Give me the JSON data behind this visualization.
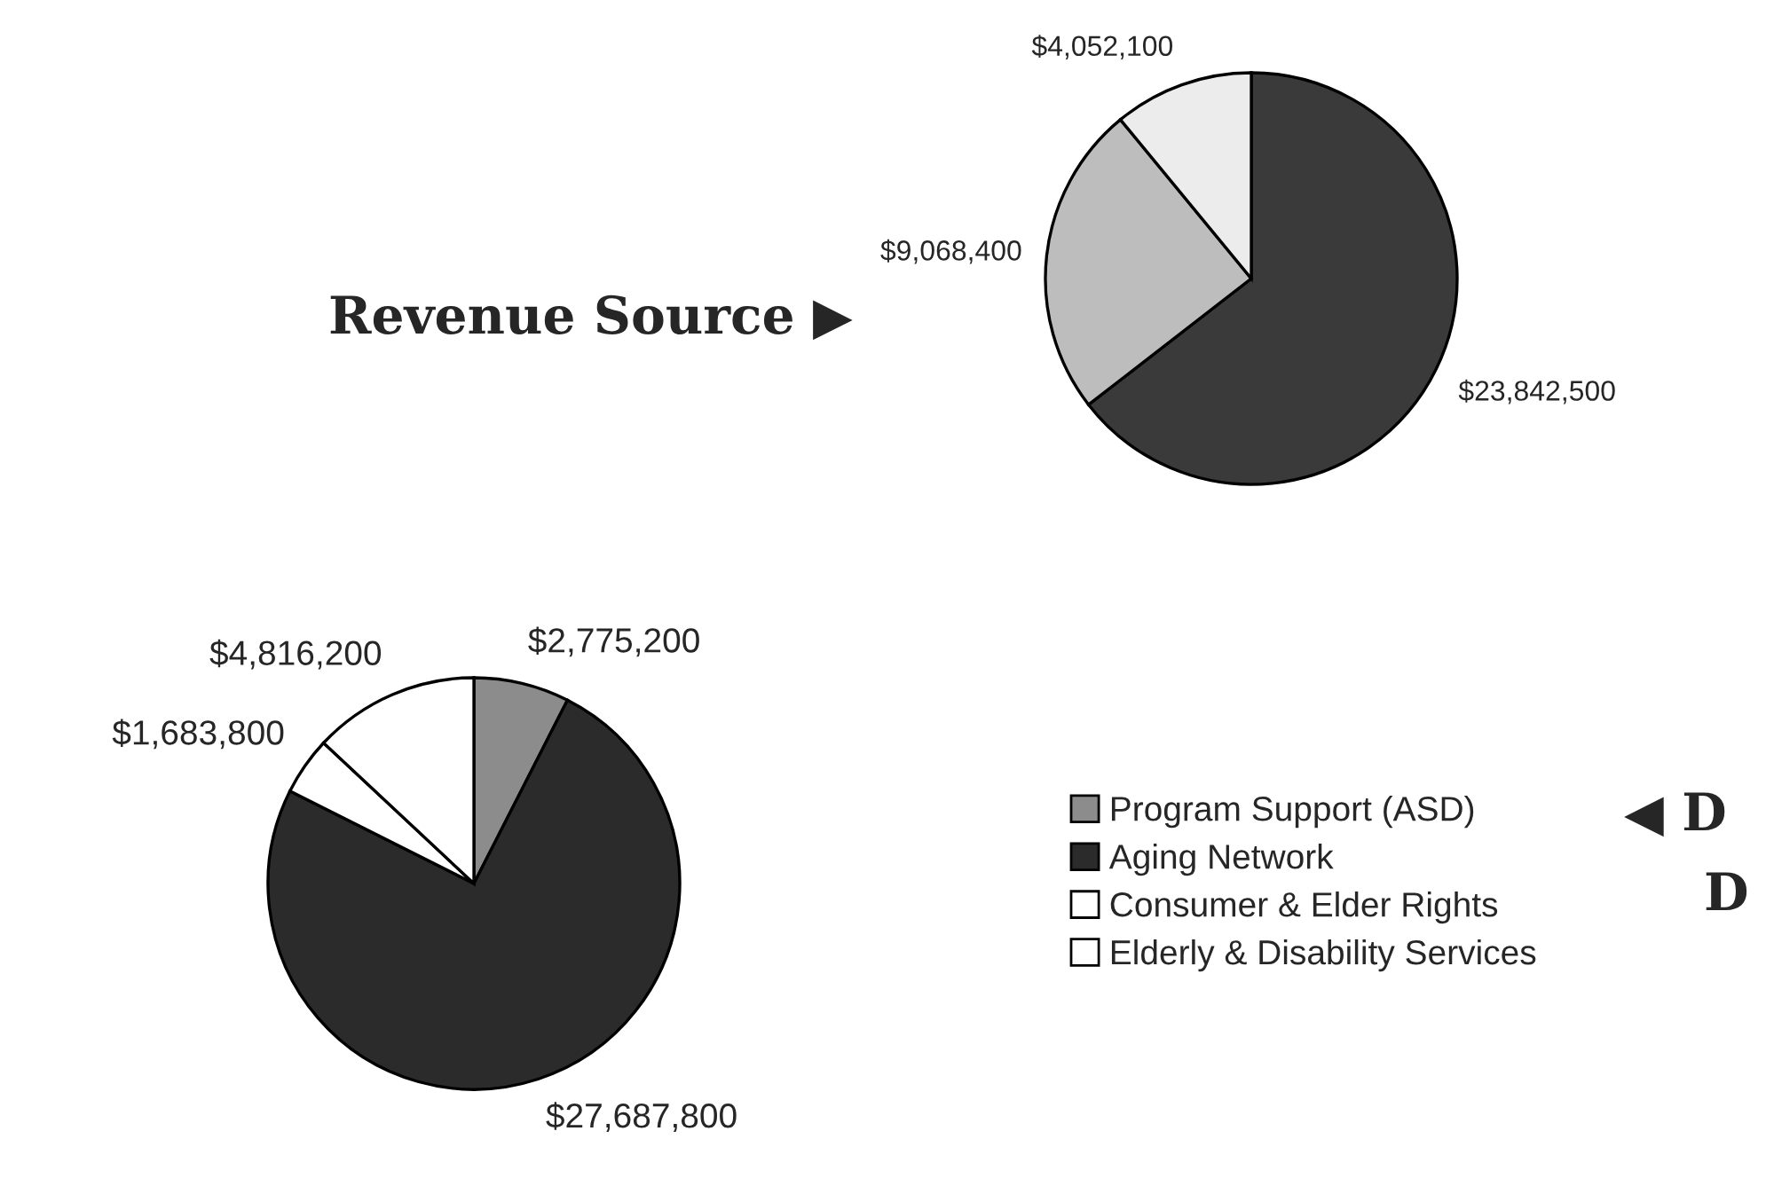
{
  "chart_data": [
    {
      "type": "pie",
      "title": "Revenue Source ▶",
      "categories": [
        null,
        null,
        null
      ],
      "values": [
        23842500,
        9068400,
        4052100
      ],
      "colors": [
        "#3a3a3a",
        "#bdbdbd",
        "#ececec"
      ],
      "value_labels": [
        "$23,842,500",
        "$9,068,400",
        "$4,052,100"
      ]
    },
    {
      "type": "pie",
      "title": "◀ D",
      "subtitle": "D",
      "categories": [
        "Program Support (ASD)",
        "Aging Network",
        "Consumer & Elder Rights",
        "Elderly & Disability Services"
      ],
      "values": [
        2775200,
        27687800,
        1683800,
        4816200
      ],
      "colors": [
        "#8c8c8c",
        "#2b2b2b",
        "#ffffff",
        "#ffffff"
      ],
      "value_labels": [
        "$2,775,200",
        "$27,687,800",
        "$1,683,800",
        "$4,816,200"
      ],
      "legend": "right"
    }
  ]
}
